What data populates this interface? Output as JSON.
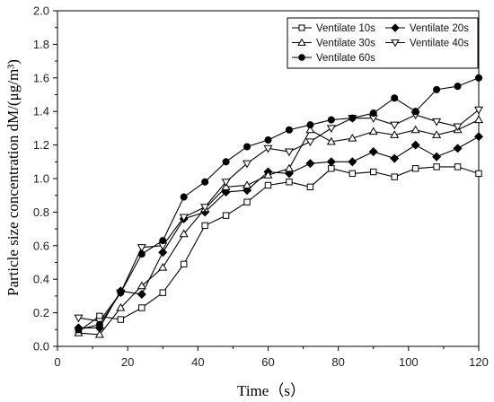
{
  "chart_data": {
    "type": "line",
    "xlabel": "Time（s）",
    "ylabel": "Particle size concentration dM/(μg/m³)",
    "xlim": [
      0,
      120
    ],
    "ylim": [
      0,
      2.0
    ],
    "xticks": [
      0,
      20,
      40,
      60,
      80,
      100,
      120
    ],
    "yticks": [
      0.0,
      0.2,
      0.4,
      0.6,
      0.8,
      1.0,
      1.2,
      1.4,
      1.6,
      1.8,
      2.0
    ],
    "ytick_labels": [
      "0.0",
      "0.2",
      "0.4",
      "0.6",
      "0.8",
      "1.0",
      "1.2",
      "1.4",
      "1.6",
      "1.8",
      "2.0"
    ],
    "grid": false,
    "legend_position": "top-right",
    "x": [
      6,
      12,
      18,
      24,
      30,
      36,
      42,
      48,
      54,
      60,
      66,
      72,
      78,
      84,
      90,
      96,
      102,
      108,
      114,
      120
    ],
    "series": [
      {
        "name": "Ventilate 10s",
        "marker": "square-open",
        "values": [
          0.09,
          0.18,
          0.16,
          0.23,
          0.32,
          0.49,
          0.72,
          0.78,
          0.86,
          0.96,
          0.98,
          0.95,
          1.06,
          1.03,
          1.04,
          1.01,
          1.06,
          1.07,
          1.07,
          1.03
        ]
      },
      {
        "name": "Ventilate 20s",
        "marker": "diamond-filled",
        "values": [
          0.11,
          0.11,
          0.33,
          0.31,
          0.56,
          0.76,
          0.8,
          0.92,
          0.93,
          1.04,
          1.03,
          1.09,
          1.1,
          1.1,
          1.16,
          1.12,
          1.2,
          1.13,
          1.18,
          1.25
        ]
      },
      {
        "name": "Ventilate 30s",
        "marker": "triangle-up-open",
        "values": [
          0.08,
          0.07,
          0.23,
          0.36,
          0.47,
          0.67,
          0.82,
          0.95,
          0.96,
          1.02,
          1.06,
          1.29,
          1.22,
          1.24,
          1.28,
          1.26,
          1.29,
          1.26,
          1.29,
          1.35
        ]
      },
      {
        "name": "Ventilate 40s",
        "marker": "triangle-down-open",
        "values": [
          0.17,
          0.15,
          0.32,
          0.59,
          0.6,
          0.77,
          0.83,
          0.98,
          1.09,
          1.18,
          1.16,
          1.22,
          1.3,
          1.36,
          1.36,
          1.32,
          1.38,
          1.34,
          1.31,
          1.41
        ]
      },
      {
        "name": "Ventilate 60s",
        "marker": "circle-filled",
        "values": [
          0.1,
          0.13,
          0.32,
          0.55,
          0.63,
          0.89,
          0.98,
          1.1,
          1.19,
          1.23,
          1.29,
          1.32,
          1.35,
          1.36,
          1.39,
          1.48,
          1.4,
          1.53,
          1.55,
          1.6
        ]
      }
    ]
  }
}
